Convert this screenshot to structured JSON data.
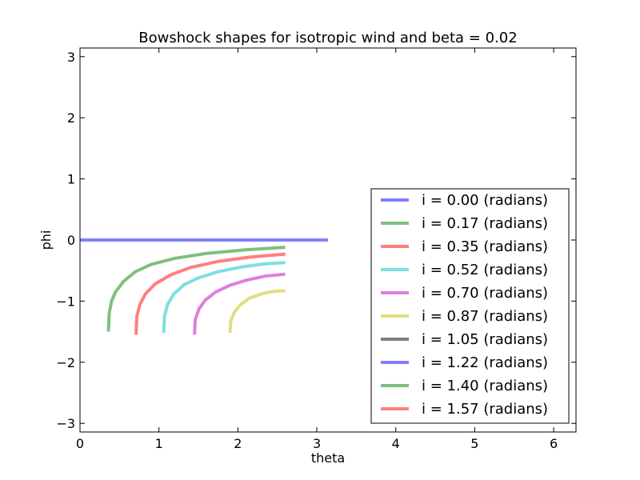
{
  "chart_data": {
    "type": "line",
    "title": "Bowshock shapes for isotropic wind and beta = 0.02",
    "xlabel": "theta",
    "ylabel": "phi",
    "xlim": [
      0,
      6.283
    ],
    "ylim": [
      -3.1416,
      3.1416
    ],
    "xticks": [
      0,
      1,
      2,
      3,
      4,
      5,
      6
    ],
    "yticks": [
      -3,
      -2,
      -1,
      0,
      1,
      2,
      3
    ],
    "xtick_labels": [
      "0",
      "1",
      "2",
      "3",
      "4",
      "5",
      "6"
    ],
    "ytick_labels": [
      "−3",
      "−2",
      "−1",
      "0",
      "1",
      "2",
      "3"
    ],
    "grid": false,
    "legend_position": "lower-right",
    "series": [
      {
        "name": "i = 0.00 (radians)",
        "color": "#7f7fff",
        "points": [
          [
            0.0,
            0.0
          ],
          [
            0.5,
            0.0
          ],
          [
            1.0,
            0.0
          ],
          [
            1.5,
            0.0
          ],
          [
            2.0,
            0.0
          ],
          [
            2.5,
            0.0
          ],
          [
            3.14,
            0.0
          ]
        ]
      },
      {
        "name": "i = 0.17 (radians)",
        "color": "#7fbf7f",
        "points": [
          [
            0.36,
            -1.5
          ],
          [
            0.37,
            -1.2
          ],
          [
            0.4,
            -1.0
          ],
          [
            0.45,
            -0.85
          ],
          [
            0.55,
            -0.68
          ],
          [
            0.7,
            -0.52
          ],
          [
            0.9,
            -0.4
          ],
          [
            1.2,
            -0.3
          ],
          [
            1.6,
            -0.22
          ],
          [
            2.1,
            -0.16
          ],
          [
            2.6,
            -0.12
          ]
        ]
      },
      {
        "name": "i = 0.35 (radians)",
        "color": "#ff7f7f",
        "points": [
          [
            0.71,
            -1.55
          ],
          [
            0.72,
            -1.25
          ],
          [
            0.76,
            -1.05
          ],
          [
            0.83,
            -0.88
          ],
          [
            0.95,
            -0.72
          ],
          [
            1.15,
            -0.57
          ],
          [
            1.4,
            -0.45
          ],
          [
            1.75,
            -0.35
          ],
          [
            2.15,
            -0.28
          ],
          [
            2.6,
            -0.23
          ]
        ]
      },
      {
        "name": "i = 0.52 (radians)",
        "color": "#7fdfdf",
        "points": [
          [
            1.06,
            -1.52
          ],
          [
            1.07,
            -1.25
          ],
          [
            1.11,
            -1.05
          ],
          [
            1.19,
            -0.88
          ],
          [
            1.32,
            -0.73
          ],
          [
            1.5,
            -0.62
          ],
          [
            1.75,
            -0.52
          ],
          [
            2.05,
            -0.44
          ],
          [
            2.35,
            -0.39
          ],
          [
            2.6,
            -0.37
          ]
        ]
      },
      {
        "name": "i = 0.70 (radians)",
        "color": "#df7fdf",
        "points": [
          [
            1.45,
            -1.55
          ],
          [
            1.46,
            -1.3
          ],
          [
            1.51,
            -1.12
          ],
          [
            1.59,
            -0.98
          ],
          [
            1.72,
            -0.85
          ],
          [
            1.9,
            -0.74
          ],
          [
            2.1,
            -0.66
          ],
          [
            2.35,
            -0.59
          ],
          [
            2.6,
            -0.56
          ]
        ]
      },
      {
        "name": "i = 0.87 (radians)",
        "color": "#dfdf7f",
        "points": [
          [
            1.9,
            -1.52
          ],
          [
            1.91,
            -1.32
          ],
          [
            1.96,
            -1.17
          ],
          [
            2.04,
            -1.05
          ],
          [
            2.15,
            -0.95
          ],
          [
            2.3,
            -0.88
          ],
          [
            2.45,
            -0.84
          ],
          [
            2.6,
            -0.83
          ]
        ]
      },
      {
        "name": "i = 1.05 (radians)",
        "color": "#7f7f7f",
        "points": []
      },
      {
        "name": "i = 1.22 (radians)",
        "color": "#7f7fff",
        "points": []
      },
      {
        "name": "i = 1.40 (radians)",
        "color": "#7fbf7f",
        "points": []
      },
      {
        "name": "i = 1.57 (radians)",
        "color": "#ff7f7f",
        "points": []
      }
    ]
  }
}
